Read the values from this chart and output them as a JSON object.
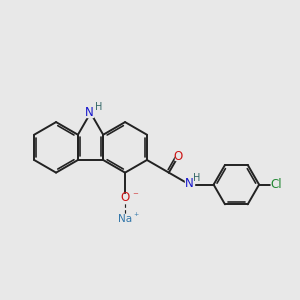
{
  "bg_color": "#e8e8e8",
  "bond_color": "#222222",
  "bond_lw": 1.4,
  "atom_colors": {
    "N": "#1515cc",
    "O": "#cc1515",
    "Na": "#3377aa",
    "Cl": "#228833",
    "H": "#336666"
  }
}
